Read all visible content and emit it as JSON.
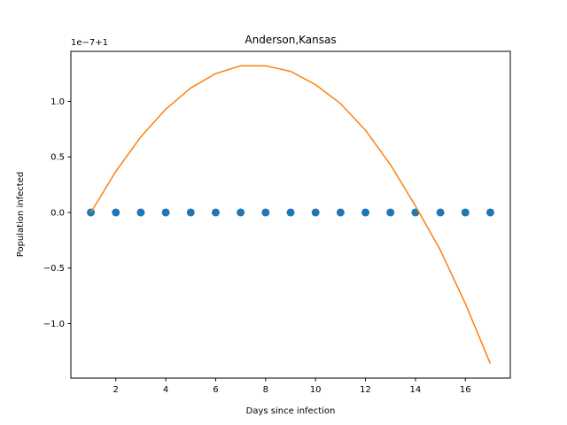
{
  "chart_data": {
    "type": "scatter",
    "title": "Anderson,Kansas",
    "xlabel": "Days since infection",
    "ylabel": "Population infected",
    "offset_label": "1e−7+1",
    "xlim": [
      0.2,
      17.8
    ],
    "ylim": [
      -1.49,
      1.45
    ],
    "xticks": [
      2,
      4,
      6,
      8,
      10,
      12,
      14,
      16
    ],
    "xtick_labels": [
      "2",
      "4",
      "6",
      "8",
      "10",
      "12",
      "14",
      "16"
    ],
    "yticks": [
      -1.0,
      -0.5,
      0.0,
      0.5,
      1.0
    ],
    "ytick_labels": [
      "−1.0",
      "−0.5",
      "0.0",
      "0.5",
      "1.0"
    ],
    "grid": false,
    "series": [
      {
        "kind": "scatter",
        "color": "#1f77b4",
        "x": [
          1,
          2,
          3,
          4,
          5,
          6,
          7,
          8,
          9,
          10,
          11,
          12,
          13,
          14,
          15,
          16,
          17
        ],
        "y": [
          0,
          0,
          0,
          0,
          0,
          0,
          0,
          0,
          0,
          0,
          0,
          0,
          0,
          0,
          0,
          0,
          0
        ]
      },
      {
        "kind": "line",
        "color": "#ff7f0e",
        "x": [
          1,
          2,
          3,
          4,
          5,
          6,
          7,
          8,
          9,
          10,
          11,
          12,
          13,
          14,
          15,
          16,
          17
        ],
        "y": [
          0.0,
          0.37,
          0.68,
          0.93,
          1.12,
          1.25,
          1.32,
          1.32,
          1.27,
          1.15,
          0.98,
          0.74,
          0.43,
          0.06,
          -0.34,
          -0.82,
          -1.36
        ]
      }
    ]
  }
}
